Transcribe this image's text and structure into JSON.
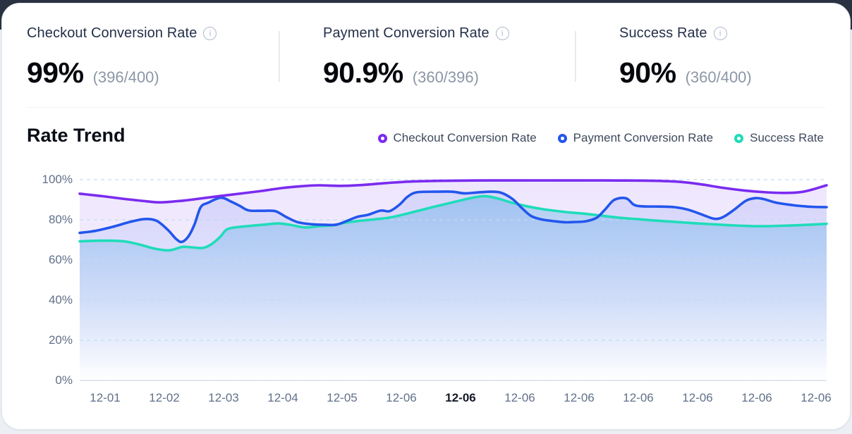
{
  "stats": [
    {
      "label": "Checkout Conversion Rate",
      "value": "99%",
      "detail": "(396/400)",
      "info_icon": "i"
    },
    {
      "label": "Payment Conversion Rate",
      "value": "90.9%",
      "detail": "(360/396)",
      "info_icon": "i"
    },
    {
      "label": "Success Rate",
      "value": "90%",
      "detail": "(360/400)",
      "info_icon": "i"
    }
  ],
  "trend": {
    "title": "Rate Trend"
  },
  "colors": {
    "checkout": "#7A2BF0",
    "payment": "#2356EC",
    "success": "#1FDCB9",
    "grid": "#C2DBEE",
    "baseline": "#D8DFE9",
    "axis_text": "#61708A"
  },
  "chart_data": {
    "type": "area",
    "title": "Rate Trend",
    "ylabel": "",
    "xlabel": "",
    "ylim": [
      0,
      100
    ],
    "grid": "horizontal-dashed",
    "legend_position": "top-right",
    "y_ticks": [
      "100%",
      "80%",
      "60%",
      "40%",
      "20%",
      "0%"
    ],
    "x_tick_labels": [
      "12-01",
      "12-02",
      "12-03",
      "12-04",
      "12-05",
      "12-06",
      "12-06",
      "12-06",
      "12-06",
      "12-06",
      "12-06",
      "12-06",
      "12-06"
    ],
    "highlighted_tick_index": 6,
    "series": [
      {
        "name": "Checkout Conversion Rate",
        "color": "#7A2BF0",
        "fill_stops": [
          [
            "0%",
            "rgba(124,58,237,0.13)"
          ],
          [
            "60%",
            "rgba(124,58,237,0.07)"
          ],
          [
            "100%",
            "rgba(124,58,237,0)"
          ]
        ],
        "points": [
          [
            0,
            93
          ],
          [
            0.03,
            91.8
          ],
          [
            0.06,
            90.4
          ],
          [
            0.09,
            89.2
          ],
          [
            0.11,
            88.7
          ],
          [
            0.14,
            89.6
          ],
          [
            0.17,
            91
          ],
          [
            0.2,
            92.4
          ],
          [
            0.24,
            94.2
          ],
          [
            0.27,
            95.8
          ],
          [
            0.295,
            96.7
          ],
          [
            0.32,
            97.2
          ],
          [
            0.35,
            96.9
          ],
          [
            0.38,
            97.4
          ],
          [
            0.41,
            98.3
          ],
          [
            0.44,
            99
          ],
          [
            0.48,
            99.4
          ],
          [
            0.55,
            99.6
          ],
          [
            0.62,
            99.6
          ],
          [
            0.7,
            99.6
          ],
          [
            0.76,
            99.5
          ],
          [
            0.8,
            99
          ],
          [
            0.83,
            97.8
          ],
          [
            0.86,
            96
          ],
          [
            0.89,
            94.6
          ],
          [
            0.92,
            93.7
          ],
          [
            0.945,
            93.4
          ],
          [
            0.965,
            93.8
          ],
          [
            0.98,
            95
          ],
          [
            1,
            97.2
          ]
        ]
      },
      {
        "name": "Payment Conversion Rate",
        "color": "#2356EC",
        "fill_stops": [
          [
            "0%",
            "rgba(37,86,235,0.13)"
          ],
          [
            "60%",
            "rgba(37,86,235,0.07)"
          ],
          [
            "100%",
            "rgba(37,86,235,0)"
          ]
        ],
        "points": [
          [
            0,
            73.5
          ],
          [
            0.021,
            74.5
          ],
          [
            0.044,
            76.5
          ],
          [
            0.068,
            79
          ],
          [
            0.087,
            80.4
          ],
          [
            0.103,
            79.5
          ],
          [
            0.118,
            75
          ],
          [
            0.129,
            70.5
          ],
          [
            0.137,
            69
          ],
          [
            0.146,
            72
          ],
          [
            0.154,
            78
          ],
          [
            0.162,
            86.3
          ],
          [
            0.172,
            88.5
          ],
          [
            0.189,
            91
          ],
          [
            0.203,
            89
          ],
          [
            0.214,
            87
          ],
          [
            0.226,
            84.7
          ],
          [
            0.245,
            84.5
          ],
          [
            0.262,
            84.3
          ],
          [
            0.276,
            81.5
          ],
          [
            0.292,
            78.8
          ],
          [
            0.311,
            77.8
          ],
          [
            0.33,
            77.5
          ],
          [
            0.344,
            77.6
          ],
          [
            0.358,
            79.5
          ],
          [
            0.372,
            81.5
          ],
          [
            0.386,
            82.5
          ],
          [
            0.403,
            84.6
          ],
          [
            0.415,
            84.3
          ],
          [
            0.428,
            87.5
          ],
          [
            0.439,
            91.5
          ],
          [
            0.451,
            93.7
          ],
          [
            0.474,
            94
          ],
          [
            0.498,
            94
          ],
          [
            0.515,
            93.2
          ],
          [
            0.532,
            93.6
          ],
          [
            0.55,
            94
          ],
          [
            0.564,
            93.5
          ],
          [
            0.579,
            90.5
          ],
          [
            0.593,
            85.5
          ],
          [
            0.604,
            82
          ],
          [
            0.617,
            80.3
          ],
          [
            0.631,
            79.5
          ],
          [
            0.649,
            78.8
          ],
          [
            0.664,
            78.9
          ],
          [
            0.678,
            79.3
          ],
          [
            0.692,
            81
          ],
          [
            0.703,
            85
          ],
          [
            0.714,
            89.5
          ],
          [
            0.723,
            90.8
          ],
          [
            0.733,
            90.5
          ],
          [
            0.742,
            87.5
          ],
          [
            0.754,
            86.7
          ],
          [
            0.777,
            86.6
          ],
          [
            0.796,
            86.3
          ],
          [
            0.815,
            85
          ],
          [
            0.834,
            82.5
          ],
          [
            0.85,
            80.5
          ],
          [
            0.862,
            81.5
          ],
          [
            0.876,
            85
          ],
          [
            0.892,
            89.5
          ],
          [
            0.905,
            90.8
          ],
          [
            0.916,
            90.3
          ],
          [
            0.933,
            88.5
          ],
          [
            0.957,
            87.2
          ],
          [
            0.979,
            86.5
          ],
          [
            1,
            86.3
          ]
        ]
      },
      {
        "name": "Success Rate",
        "color": "#1FDCB9",
        "fill_stops": [
          [
            "0%",
            "rgba(73,166,226,0.42)"
          ],
          [
            "55%",
            "rgba(73,166,226,0.16)"
          ],
          [
            "100%",
            "rgba(73,166,226,0)"
          ]
        ],
        "points": [
          [
            0,
            69.3
          ],
          [
            0.03,
            69.6
          ],
          [
            0.059,
            69.3
          ],
          [
            0.082,
            67.5
          ],
          [
            0.101,
            65.6
          ],
          [
            0.12,
            64.8
          ],
          [
            0.137,
            66.5
          ],
          [
            0.15,
            66.3
          ],
          [
            0.165,
            66
          ],
          [
            0.177,
            68
          ],
          [
            0.188,
            71.5
          ],
          [
            0.197,
            75.2
          ],
          [
            0.21,
            76.3
          ],
          [
            0.229,
            77
          ],
          [
            0.247,
            77.6
          ],
          [
            0.266,
            78.2
          ],
          [
            0.282,
            77.5
          ],
          [
            0.302,
            76.2
          ],
          [
            0.32,
            76.8
          ],
          [
            0.337,
            77.2
          ],
          [
            0.356,
            78.6
          ],
          [
            0.375,
            79.5
          ],
          [
            0.394,
            80.2
          ],
          [
            0.413,
            81
          ],
          [
            0.432,
            82.5
          ],
          [
            0.45,
            84.2
          ],
          [
            0.469,
            86
          ],
          [
            0.488,
            87.7
          ],
          [
            0.507,
            89.4
          ],
          [
            0.526,
            91
          ],
          [
            0.543,
            91.8
          ],
          [
            0.56,
            90.6
          ],
          [
            0.578,
            88.6
          ],
          [
            0.597,
            86.9
          ],
          [
            0.62,
            85.3
          ],
          [
            0.639,
            84.4
          ],
          [
            0.658,
            83.6
          ],
          [
            0.677,
            83
          ],
          [
            0.698,
            82.1
          ],
          [
            0.724,
            81
          ],
          [
            0.748,
            80.3
          ],
          [
            0.771,
            79.6
          ],
          [
            0.795,
            79
          ],
          [
            0.819,
            78.4
          ],
          [
            0.842,
            77.9
          ],
          [
            0.866,
            77.4
          ],
          [
            0.889,
            77
          ],
          [
            0.913,
            76.8
          ],
          [
            0.937,
            77
          ],
          [
            0.96,
            77.3
          ],
          [
            0.984,
            77.7
          ],
          [
            1,
            78
          ]
        ]
      }
    ]
  }
}
